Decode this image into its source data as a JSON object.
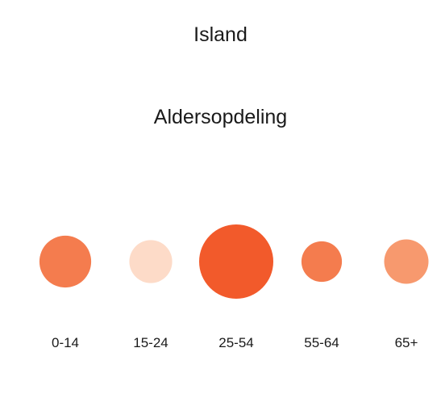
{
  "chart_data": {
    "type": "bubble",
    "title": "Island",
    "subtitle": "Aldersopdeling",
    "categories": [
      "0-14",
      "15-24",
      "25-54",
      "55-64",
      "65+"
    ],
    "values": [
      19.7,
      13.5,
      40.4,
      12.0,
      14.4
    ],
    "colors": [
      "#f47c4e",
      "#fddbc8",
      "#f25a2b",
      "#f47c4e",
      "#f7996e"
    ]
  }
}
